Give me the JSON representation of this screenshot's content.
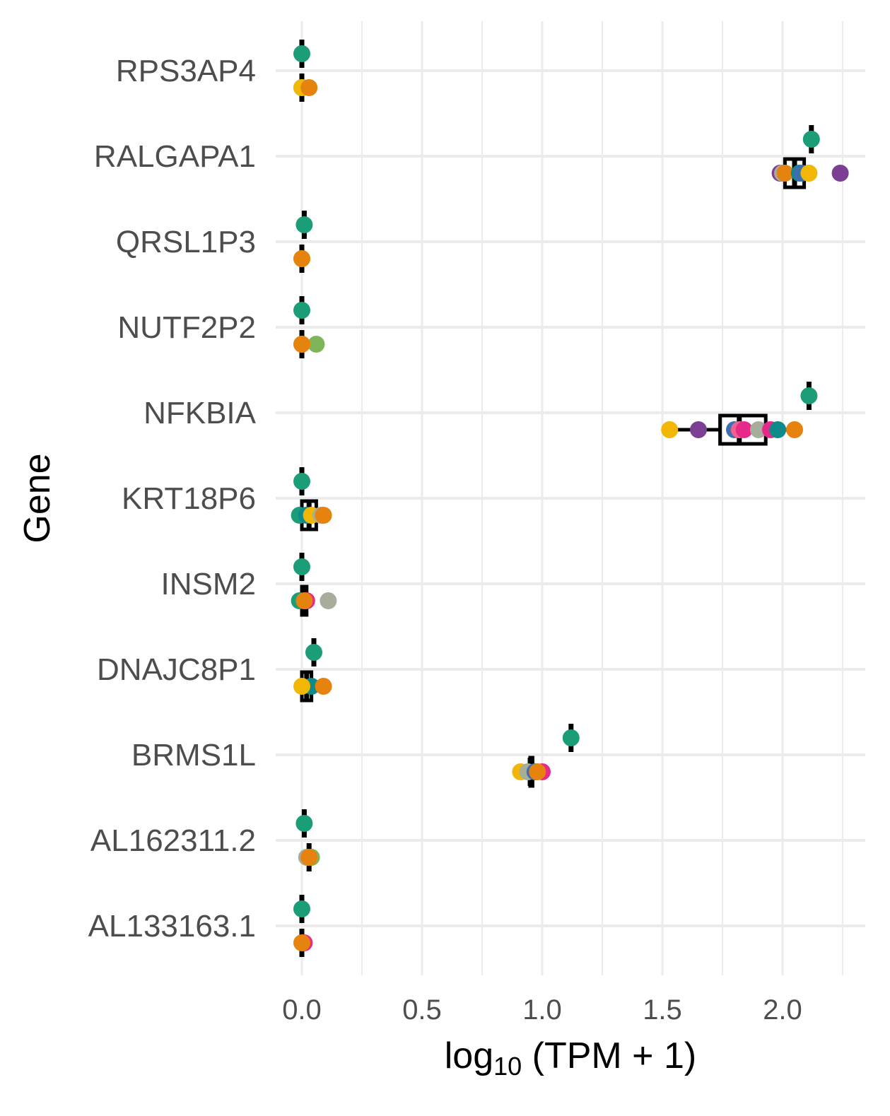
{
  "chart_data": {
    "type": "scatter",
    "subtype": "horizontal box plot with jittered points",
    "title": "",
    "xlabel": {
      "prefix": "log",
      "subscript": "10",
      "suffix": " (TPM + 1)"
    },
    "ylabel": "Gene",
    "xlim": [
      -0.11,
      2.35
    ],
    "x_ticks": [
      0.0,
      0.5,
      1.0,
      1.5,
      2.0
    ],
    "x_tick_labels": [
      "0.0",
      "0.5",
      "1.0",
      "1.5",
      "2.0"
    ],
    "grid": true,
    "legend": "none",
    "genes": [
      "RPS3AP4",
      "RALGAPA1",
      "QRSL1P3",
      "NUTF2P2",
      "NFKBIA",
      "KRT18P6",
      "INSM2",
      "DNAJC8P1",
      "BRMS1L",
      "AL162311.2",
      "AL133163.1"
    ],
    "colors": {
      "green": "#1b9e77",
      "orange": "#e6820e",
      "yellow": "#f2b705",
      "purple": "#7b3f94",
      "magenta": "#e7298a",
      "blue": "#3a6fb0",
      "teal": "#0e8a8a",
      "gray": "#a6ad9a",
      "lightgreen": "#7fb55a",
      "pink": "#f06292",
      "box": "#000000",
      "grid": "#ebebeb"
    },
    "groups": [
      {
        "gene": "RPS3AP4",
        "upper": {
          "box": [
            0.0,
            0.0,
            0.0,
            0.0,
            0.0
          ],
          "points": [
            {
              "x": 0.0,
              "c": "green"
            }
          ]
        },
        "lower": {
          "box": [
            0.0,
            0.0,
            0.0,
            0.0,
            0.0
          ],
          "points": [
            {
              "x": 0.0,
              "c": "green"
            },
            {
              "x": 0.0,
              "c": "yellow"
            },
            {
              "x": 0.03,
              "c": "orange"
            }
          ]
        }
      },
      {
        "gene": "RALGAPA1",
        "upper": {
          "box": [
            2.12,
            2.12,
            2.12,
            2.12,
            2.12
          ],
          "points": [
            {
              "x": 2.12,
              "c": "green"
            }
          ]
        },
        "lower": {
          "box": [
            1.99,
            2.01,
            2.05,
            2.09,
            2.12
          ],
          "points": [
            {
              "x": 1.99,
              "c": "purple"
            },
            {
              "x": 2.0,
              "c": "gray"
            },
            {
              "x": 2.01,
              "c": "orange"
            },
            {
              "x": 2.07,
              "c": "teal"
            },
            {
              "x": 2.08,
              "c": "blue"
            },
            {
              "x": 2.11,
              "c": "yellow"
            },
            {
              "x": 2.24,
              "c": "purple"
            }
          ]
        }
      },
      {
        "gene": "QRSL1P3",
        "upper": {
          "box": [
            0.01,
            0.01,
            0.01,
            0.01,
            0.01
          ],
          "points": [
            {
              "x": 0.01,
              "c": "green"
            }
          ]
        },
        "lower": {
          "box": [
            0.0,
            0.0,
            0.0,
            0.0,
            0.0
          ],
          "points": [
            {
              "x": 0.0,
              "c": "yellow"
            },
            {
              "x": 0.0,
              "c": "orange"
            }
          ]
        }
      },
      {
        "gene": "NUTF2P2",
        "upper": {
          "box": [
            0.0,
            0.0,
            0.0,
            0.0,
            0.0
          ],
          "points": [
            {
              "x": 0.0,
              "c": "green"
            }
          ]
        },
        "lower": {
          "box": [
            0.0,
            0.0,
            0.0,
            0.0,
            0.0
          ],
          "points": [
            {
              "x": 0.06,
              "c": "lightgreen"
            },
            {
              "x": 0.0,
              "c": "yellow"
            },
            {
              "x": 0.0,
              "c": "orange"
            }
          ]
        }
      },
      {
        "gene": "NFKBIA",
        "upper": {
          "box": [
            2.11,
            2.11,
            2.11,
            2.11,
            2.11
          ],
          "points": [
            {
              "x": 2.11,
              "c": "green"
            }
          ]
        },
        "lower": {
          "box": [
            1.53,
            1.74,
            1.82,
            1.93,
            2.05
          ],
          "points": [
            {
              "x": 1.53,
              "c": "yellow"
            },
            {
              "x": 1.65,
              "c": "purple"
            },
            {
              "x": 1.8,
              "c": "blue"
            },
            {
              "x": 1.82,
              "c": "pink"
            },
            {
              "x": 1.84,
              "c": "magenta"
            },
            {
              "x": 1.9,
              "c": "gray"
            },
            {
              "x": 1.95,
              "c": "magenta"
            },
            {
              "x": 1.98,
              "c": "teal"
            },
            {
              "x": 2.05,
              "c": "orange"
            }
          ]
        }
      },
      {
        "gene": "KRT18P6",
        "upper": {
          "box": [
            0.0,
            0.0,
            0.0,
            0.0,
            0.0
          ],
          "points": [
            {
              "x": 0.0,
              "c": "green"
            }
          ]
        },
        "lower": {
          "box": [
            -0.01,
            0.0,
            0.03,
            0.06,
            0.1
          ],
          "points": [
            {
              "x": -0.01,
              "c": "green"
            },
            {
              "x": 0.02,
              "c": "teal"
            },
            {
              "x": 0.04,
              "c": "yellow"
            },
            {
              "x": 0.08,
              "c": "gray"
            },
            {
              "x": 0.09,
              "c": "orange"
            }
          ]
        }
      },
      {
        "gene": "INSM2",
        "upper": {
          "box": [
            0.0,
            0.0,
            0.0,
            0.0,
            0.0
          ],
          "points": [
            {
              "x": 0.0,
              "c": "green"
            }
          ]
        },
        "lower": {
          "box": [
            0.0,
            0.0,
            0.01,
            0.02,
            0.02
          ],
          "points": [
            {
              "x": -0.01,
              "c": "green"
            },
            {
              "x": 0.02,
              "c": "magenta"
            },
            {
              "x": 0.01,
              "c": "orange"
            },
            {
              "x": 0.11,
              "c": "gray"
            }
          ]
        }
      },
      {
        "gene": "DNAJC8P1",
        "upper": {
          "box": [
            0.05,
            0.05,
            0.05,
            0.05,
            0.05
          ],
          "points": [
            {
              "x": 0.05,
              "c": "green"
            }
          ]
        },
        "lower": {
          "box": [
            0.0,
            0.0,
            0.02,
            0.04,
            0.09
          ],
          "points": [
            {
              "x": 0.04,
              "c": "teal"
            },
            {
              "x": 0.09,
              "c": "orange"
            },
            {
              "x": 0.0,
              "c": "yellow"
            }
          ]
        }
      },
      {
        "gene": "BRMS1L",
        "upper": {
          "box": [
            1.12,
            1.12,
            1.12,
            1.12,
            1.12
          ],
          "points": [
            {
              "x": 1.12,
              "c": "green"
            }
          ]
        },
        "lower": {
          "box": [
            0.91,
            0.95,
            0.95,
            0.96,
            1.01
          ],
          "points": [
            {
              "x": 0.91,
              "c": "yellow"
            },
            {
              "x": 0.94,
              "c": "gray"
            },
            {
              "x": 0.97,
              "c": "blue"
            },
            {
              "x": 1.0,
              "c": "magenta"
            },
            {
              "x": 0.98,
              "c": "orange"
            }
          ]
        }
      },
      {
        "gene": "AL162311.2",
        "upper": {
          "box": [
            0.01,
            0.01,
            0.01,
            0.01,
            0.01
          ],
          "points": [
            {
              "x": 0.01,
              "c": "green"
            }
          ]
        },
        "lower": {
          "box": [
            0.03,
            0.03,
            0.03,
            0.03,
            0.03
          ],
          "points": [
            {
              "x": 0.04,
              "c": "lightgreen"
            },
            {
              "x": 0.02,
              "c": "gray"
            },
            {
              "x": 0.03,
              "c": "orange"
            }
          ]
        }
      },
      {
        "gene": "AL133163.1",
        "upper": {
          "box": [
            0.0,
            0.0,
            0.0,
            0.0,
            0.0
          ],
          "points": [
            {
              "x": 0.0,
              "c": "green"
            }
          ]
        },
        "lower": {
          "box": [
            0.0,
            0.0,
            0.0,
            0.0,
            0.0
          ],
          "points": [
            {
              "x": 0.01,
              "c": "magenta"
            },
            {
              "x": 0.0,
              "c": "orange"
            }
          ]
        }
      }
    ]
  }
}
